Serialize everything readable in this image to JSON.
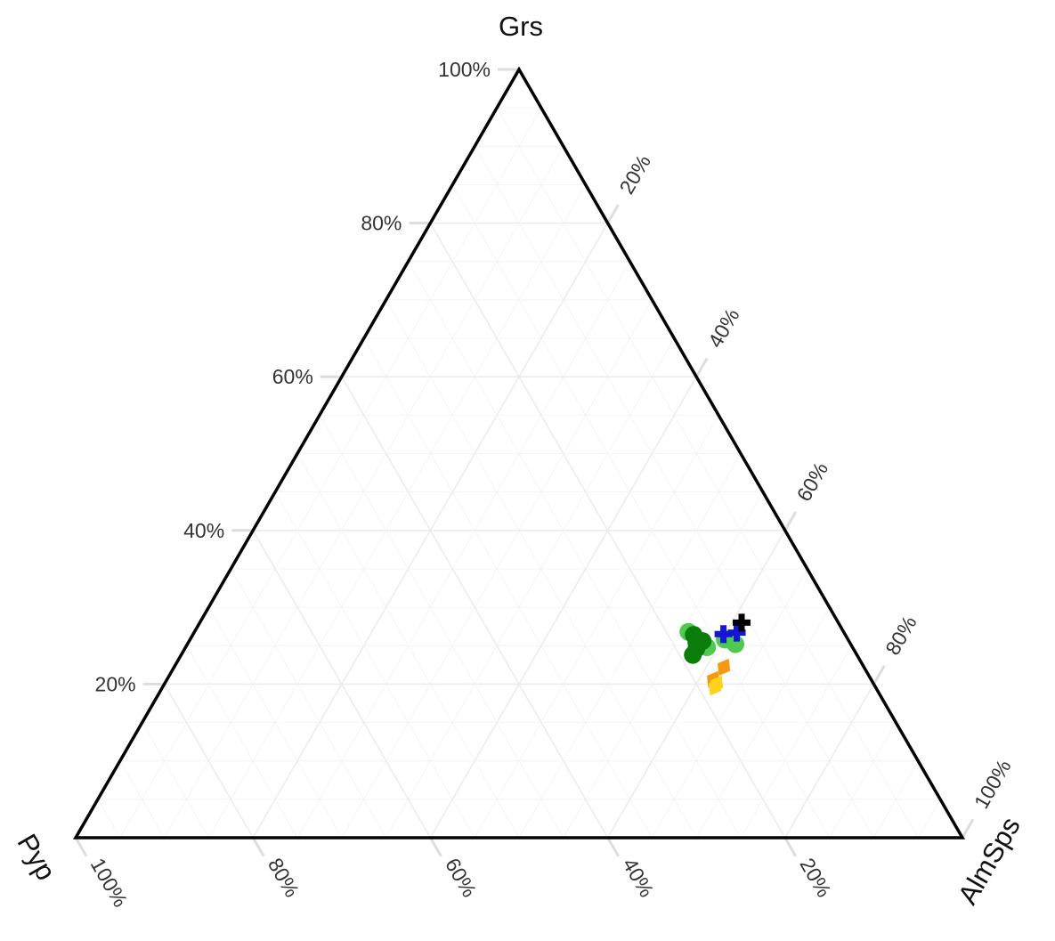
{
  "chart_data": {
    "type": "ternary-scatter",
    "axes": {
      "top": "Grs",
      "left": "Pyp",
      "right": "AlmSps"
    },
    "ticks": {
      "values": [
        20,
        40,
        60,
        80,
        100
      ],
      "labels": [
        "20%",
        "40%",
        "60%",
        "80%",
        "100%"
      ]
    },
    "grid": true,
    "series": [
      {
        "marker": "circle",
        "color": "#4fc94f",
        "points": [
          {
            "Grs": 26.8,
            "Pyp": 17.5,
            "AlmSps": 55.7
          },
          {
            "Grs": 25.8,
            "Pyp": 13.9,
            "AlmSps": 60.3
          },
          {
            "Grs": 25.2,
            "Pyp": 13.0,
            "AlmSps": 61.8
          },
          {
            "Grs": 24.8,
            "Pyp": 16.4,
            "AlmSps": 58.8
          }
        ]
      },
      {
        "marker": "circle",
        "color": "#0b7d0b",
        "points": [
          {
            "Grs": 26.4,
            "Pyp": 17.1,
            "AlmSps": 56.5
          },
          {
            "Grs": 25.4,
            "Pyp": 17.3,
            "AlmSps": 57.3
          },
          {
            "Grs": 24.6,
            "Pyp": 17.7,
            "AlmSps": 57.7
          },
          {
            "Grs": 23.8,
            "Pyp": 18.5,
            "AlmSps": 57.7
          },
          {
            "Grs": 25.6,
            "Pyp": 16.5,
            "AlmSps": 57.9
          }
        ]
      },
      {
        "marker": "diamond",
        "color": "#f39a11",
        "points": [
          {
            "Grs": 22.2,
            "Pyp": 15.8,
            "AlmSps": 62.0
          },
          {
            "Grs": 20.6,
            "Pyp": 17.8,
            "AlmSps": 61.6
          }
        ]
      },
      {
        "marker": "diamond",
        "color": "#ffd21e",
        "points": [
          {
            "Grs": 20.0,
            "Pyp": 17.7,
            "AlmSps": 62.3
          },
          {
            "Grs": 19.6,
            "Pyp": 18.1,
            "AlmSps": 62.3
          }
        ]
      },
      {
        "marker": "plus",
        "color": "#1515d6",
        "points": [
          {
            "Grs": 26.7,
            "Pyp": 12.1,
            "AlmSps": 61.2
          },
          {
            "Grs": 26.5,
            "Pyp": 13.7,
            "AlmSps": 59.8
          }
        ]
      },
      {
        "marker": "plus",
        "color": "#000000",
        "points": [
          {
            "Grs": 28.0,
            "Pyp": 10.9,
            "AlmSps": 61.1
          }
        ]
      }
    ]
  }
}
